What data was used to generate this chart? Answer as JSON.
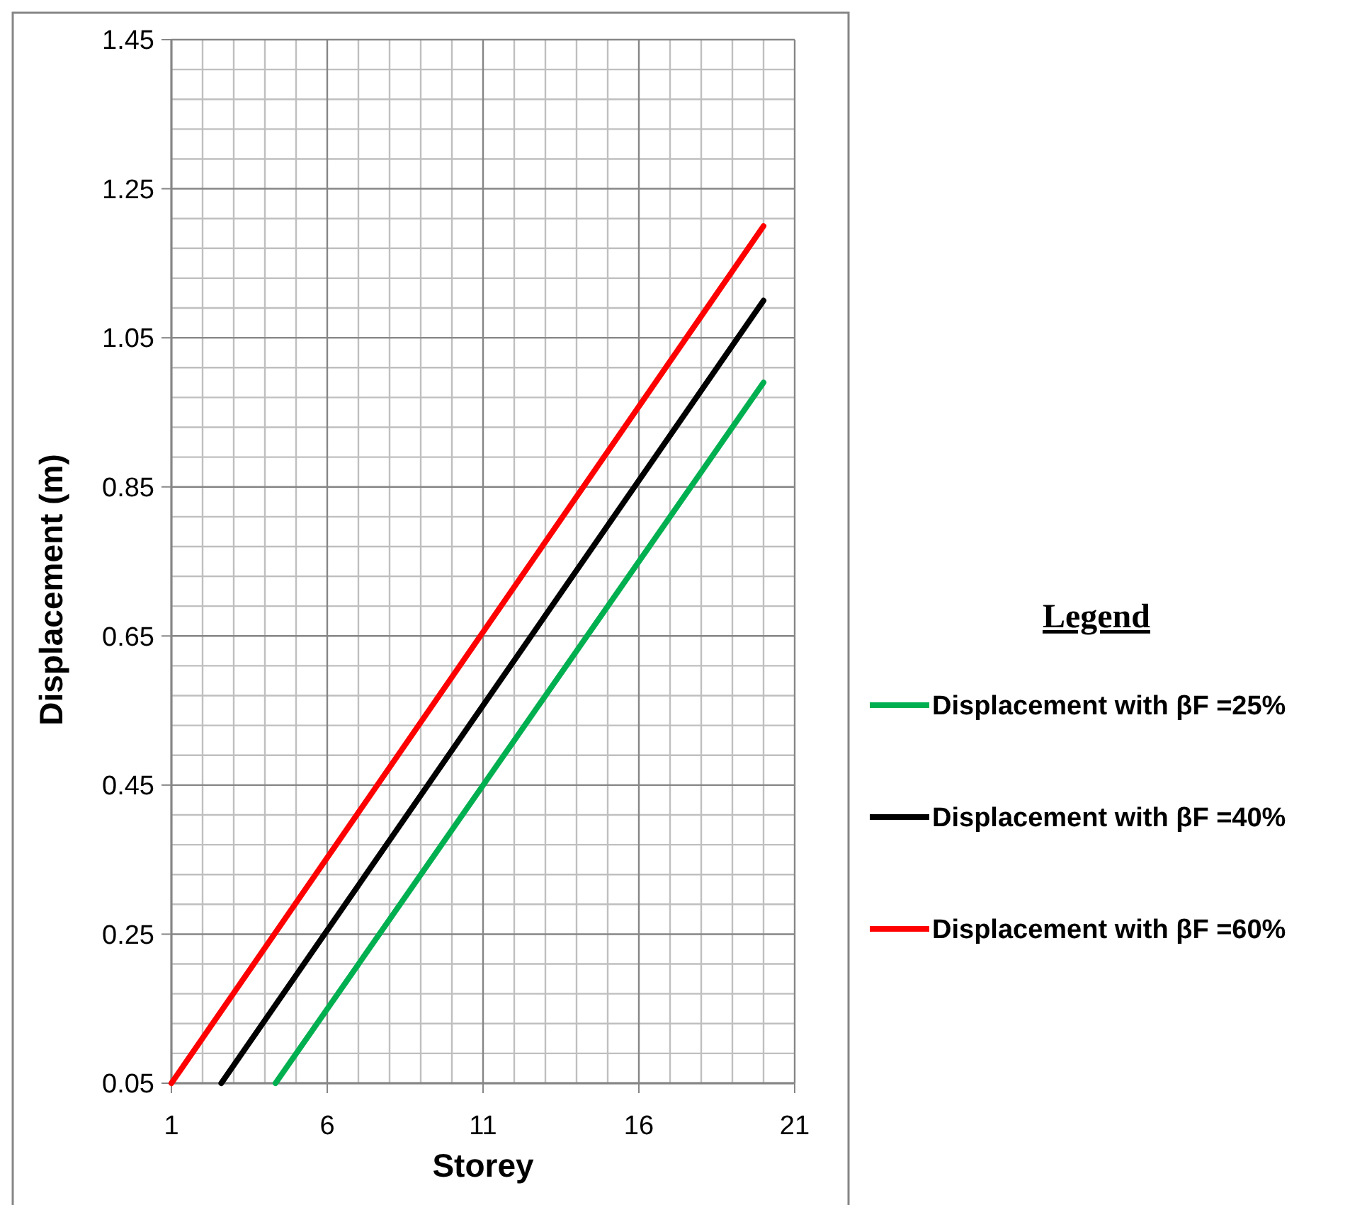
{
  "chart_data": {
    "type": "line",
    "xlabel": "Storey",
    "ylabel": "Displacement (m)",
    "legend_title": "Legend",
    "xlim": [
      1,
      21
    ],
    "xticks": [
      1,
      6,
      11,
      16,
      21
    ],
    "ylim": [
      0.05,
      1.45
    ],
    "yticks": [
      0.05,
      0.25,
      0.45,
      0.65,
      0.85,
      1.05,
      1.25,
      1.45
    ],
    "grid": true,
    "legend": "right",
    "line_style": "solid",
    "marker": "none",
    "series": [
      {
        "name": "Displacement with βF =25%",
        "color": "#00b050",
        "x": [
          4.34,
          20
        ],
        "values": [
          0.05,
          0.99
        ]
      },
      {
        "name": "Displacement with βF =40%",
        "color": "#000000",
        "x": [
          2.6,
          20
        ],
        "values": [
          0.05,
          1.1
        ]
      },
      {
        "name": "Displacement with βF =60%",
        "color": "#ff0000",
        "x": [
          1,
          20
        ],
        "values": [
          0.05,
          1.2
        ]
      }
    ]
  }
}
